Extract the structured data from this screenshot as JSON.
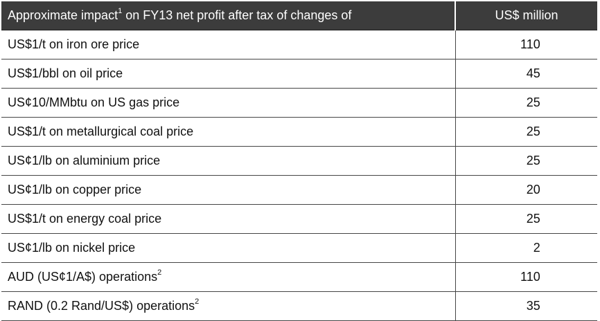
{
  "table": {
    "header": {
      "label_main": "Approximate impact",
      "label_footnote": "1",
      "label_rest": " on FY13 net profit after tax of changes of",
      "value": "US$ million"
    },
    "rows": [
      {
        "label": "US$1/t on iron ore price",
        "footnote": "",
        "value": "110"
      },
      {
        "label": "US$1/bbl on oil price",
        "footnote": "",
        "value": "45"
      },
      {
        "label": "US¢10/MMbtu on US gas price",
        "footnote": "",
        "value": "25"
      },
      {
        "label": "US$1/t on metallurgical coal price",
        "footnote": "",
        "value": "25"
      },
      {
        "label": "US¢1/lb on aluminium price",
        "footnote": "",
        "value": "25"
      },
      {
        "label": "US¢1/lb on copper price",
        "footnote": "",
        "value": "20"
      },
      {
        "label": "US$1/t on energy coal price",
        "footnote": "",
        "value": "25"
      },
      {
        "label": "US¢1/lb on nickel price",
        "footnote": "",
        "value": "2"
      },
      {
        "label": "AUD (US¢1/A$) operations",
        "footnote": "2",
        "value": "110"
      },
      {
        "label": "RAND (0.2 Rand/US$) operations",
        "footnote": "2",
        "value": "35"
      }
    ]
  }
}
